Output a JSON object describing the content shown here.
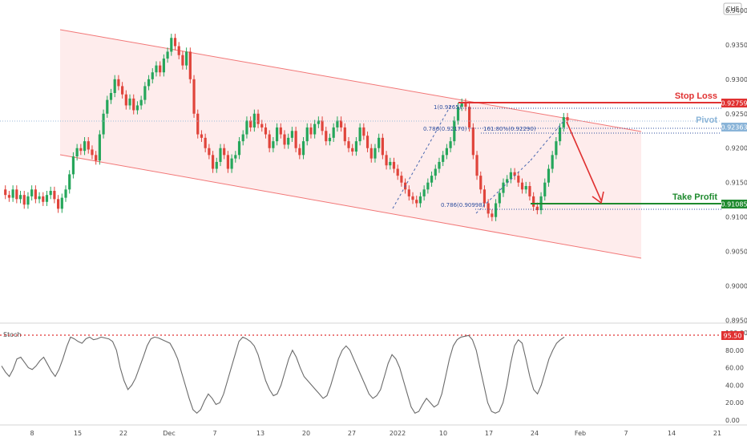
{
  "currency": "CHF",
  "stoch_label": "Stoch",
  "chart_data": [
    {
      "type": "line",
      "title": "",
      "ylabel": "",
      "ylim": [
        0.8946,
        0.9415
      ],
      "y_ticks": [
        "0.94000",
        "0.93500",
        "0.93000",
        "0.92500",
        "0.92000",
        "0.91500",
        "0.91000",
        "0.90500",
        "0.90000",
        "0.89500"
      ],
      "x_ticks": [
        "8",
        "15",
        "22",
        "Dec",
        "7",
        "13",
        "20",
        "27",
        "2022",
        "10",
        "17",
        "24",
        "Feb",
        "7",
        "14",
        "21"
      ],
      "series": [
        {
          "values": [
            0.914,
            0.9132,
            0.9128,
            0.914,
            0.9126,
            0.9132,
            0.9118,
            0.913,
            0.914,
            0.9126,
            0.913,
            0.9122,
            0.9132,
            0.9138,
            0.9126,
            0.9112,
            0.9128,
            0.914,
            0.9162,
            0.9188,
            0.92,
            0.9196,
            0.921,
            0.9198,
            0.919,
            0.9182,
            0.922,
            0.925,
            0.927,
            0.928,
            0.93,
            0.929,
            0.9278,
            0.9262,
            0.9272,
            0.9255,
            0.9262,
            0.927,
            0.929,
            0.93,
            0.931,
            0.932,
            0.931,
            0.933,
            0.934,
            0.936,
            0.9348,
            0.9335,
            0.932,
            0.934,
            0.93,
            0.925,
            0.922,
            0.9215,
            0.92,
            0.919,
            0.917,
            0.918,
            0.92,
            0.919,
            0.917,
            0.9185,
            0.919,
            0.921,
            0.922,
            0.924,
            0.923,
            0.925,
            0.9235,
            0.923,
            0.922,
            0.92,
            0.921,
            0.923,
            0.922,
            0.9205,
            0.9215,
            0.9225,
            0.92,
            0.919,
            0.921,
            0.923,
            0.922,
            0.9235,
            0.924,
            0.9225,
            0.921,
            0.9215,
            0.923,
            0.924,
            0.923,
            0.921,
            0.92,
            0.9195,
            0.921,
            0.923,
            0.9218,
            0.92,
            0.9185,
            0.92,
            0.9215,
            0.919,
            0.9175,
            0.918,
            0.917,
            0.916,
            0.915,
            0.914,
            0.913,
            0.9125,
            0.912,
            0.913,
            0.914,
            0.915,
            0.916,
            0.917,
            0.918,
            0.919,
            0.92,
            0.921,
            0.924,
            0.926,
            0.9266,
            0.926,
            0.923,
            0.919,
            0.916,
            0.914,
            0.912,
            0.9105,
            0.91,
            0.912,
            0.9135,
            0.915,
            0.9155,
            0.9165,
            0.916,
            0.915,
            0.914,
            0.9145,
            0.913,
            0.9115,
            0.911,
            0.913,
            0.915,
            0.917,
            0.919,
            0.921,
            0.923,
            0.9245,
            0.924
          ]
        },
        {
          "name": "Stoch",
          "values": [
            62,
            55,
            50,
            58,
            70,
            72,
            66,
            60,
            58,
            62,
            68,
            72,
            64,
            56,
            50,
            58,
            70,
            84,
            95,
            93,
            90,
            88,
            93,
            95,
            92,
            93,
            95,
            94,
            93,
            90,
            80,
            60,
            45,
            35,
            40,
            48,
            60,
            72,
            85,
            93,
            95,
            94,
            92,
            90,
            88,
            80,
            70,
            55,
            40,
            25,
            12,
            8,
            12,
            22,
            30,
            25,
            18,
            20,
            30,
            45,
            60,
            75,
            90,
            95,
            93,
            90,
            85,
            75,
            60,
            45,
            35,
            28,
            30,
            40,
            55,
            70,
            80,
            72,
            60,
            50,
            45,
            40,
            35,
            30,
            25,
            28,
            40,
            55,
            70,
            80,
            85,
            80,
            70,
            60,
            50,
            40,
            30,
            25,
            28,
            35,
            50,
            65,
            75,
            70,
            60,
            45,
            30,
            15,
            8,
            10,
            18,
            25,
            20,
            15,
            18,
            30,
            50,
            70,
            85,
            92,
            95,
            96,
            97,
            92,
            80,
            60,
            40,
            20,
            10,
            8,
            10,
            20,
            40,
            65,
            85,
            92,
            88,
            70,
            50,
            35,
            30,
            40,
            55,
            70,
            80,
            88,
            92,
            95
          ]
        }
      ],
      "levels": [
        {
          "name": "Stop Loss",
          "value": "0.92759",
          "color": "#e03131"
        },
        {
          "name": "Pivot",
          "value": "0.92363",
          "color": "#8ab4d8"
        },
        {
          "name": "Take Profit",
          "value": "0.91085",
          "color": "#1e8a2e"
        }
      ],
      "fib_labels": [
        "1(0.9265)",
        "0.786(0.92170)",
        "161.80%(0.92290)",
        "0.786(0.90998)"
      ]
    },
    {
      "type": "line",
      "title": "Stoch",
      "ylim": [
        0,
        100
      ],
      "y_ticks": [
        "100.00",
        "80.00",
        "60.00",
        "40.00",
        "20.00",
        "0.00"
      ],
      "overbought_value": "95.50"
    }
  ]
}
